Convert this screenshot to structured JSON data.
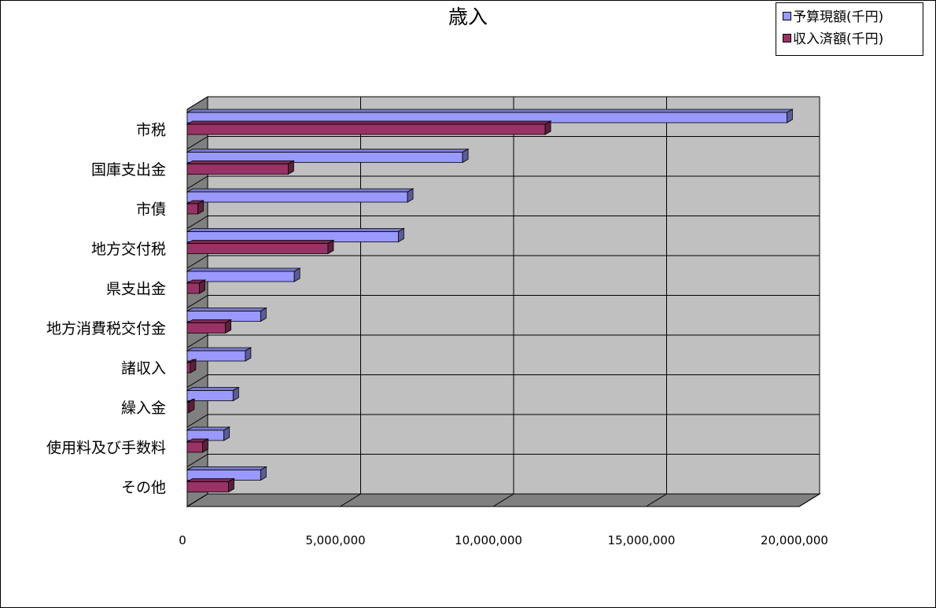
{
  "chart_data": {
    "type": "bar",
    "orientation": "horizontal",
    "style": "3d",
    "title": "歳入",
    "categories": [
      "市税",
      "国庫支出金",
      "市債",
      "地方交付税",
      "県支出金",
      "地方消費税交付金",
      "諸収入",
      "繰入金",
      "使用料及び手数料",
      "その他"
    ],
    "series": [
      {
        "name": "予算現額(千円)",
        "color": "#9999ff",
        "values": [
          19600000,
          9000000,
          7200000,
          6900000,
          3500000,
          2400000,
          1900000,
          1500000,
          1200000,
          2400000
        ]
      },
      {
        "name": "収入済額(千円)",
        "color": "#993366",
        "values": [
          11700000,
          3300000,
          350000,
          4600000,
          400000,
          1250000,
          100000,
          50000,
          500000,
          1350000
        ]
      }
    ],
    "xlim": [
      0,
      20000000
    ],
    "xticks": [
      "0",
      "5,000,000",
      "10,000,000",
      "15,000,000",
      "20,000,000"
    ],
    "grid": true,
    "legend_position": "top-right",
    "wall_color": "#c0c0c0",
    "floor_color": "#808080"
  }
}
